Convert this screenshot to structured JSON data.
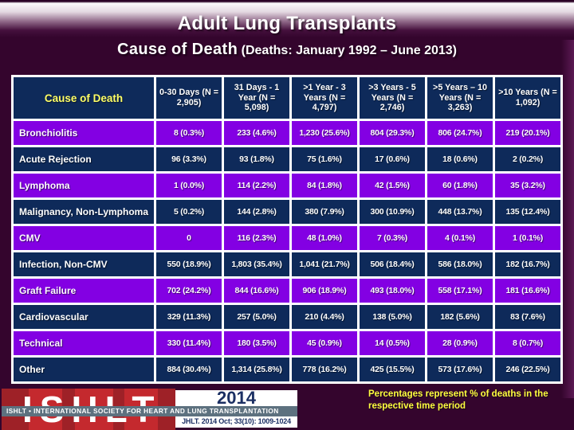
{
  "slide": {
    "title": "Adult Lung Transplants",
    "subtitle": "Cause of Death",
    "subtitle_detail": "(Deaths: January 1992 – June 2013)",
    "footnote": "Percentages represent % of deaths in the respective time period"
  },
  "table": {
    "corner_header": "Cause of Death",
    "columns": [
      {
        "label": "0-30 Days",
        "n": "(N = 2,905)"
      },
      {
        "label": "31 Days - 1 Year",
        "n": "(N = 5,098)"
      },
      {
        "label": ">1 Year - 3 Years",
        "n": "(N = 4,797)"
      },
      {
        "label": ">3 Years - 5 Years",
        "n": "(N = 2,746)"
      },
      {
        "label": ">5 Years – 10 Years",
        "n": "(N = 3,263)"
      },
      {
        "label": ">10 Years",
        "n": "(N = 1,092)"
      }
    ],
    "rows": [
      {
        "label": "Bronchiolitis",
        "values": [
          "8 (0.3%)",
          "233 (4.6%)",
          "1,230 (25.6%)",
          "804 (29.3%)",
          "806 (24.7%)",
          "219 (20.1%)"
        ]
      },
      {
        "label": "Acute Rejection",
        "values": [
          "96 (3.3%)",
          "93 (1.8%)",
          "75 (1.6%)",
          "17 (0.6%)",
          "18 (0.6%)",
          "2 (0.2%)"
        ]
      },
      {
        "label": "Lymphoma",
        "values": [
          "1 (0.0%)",
          "114 (2.2%)",
          "84 (1.8%)",
          "42 (1.5%)",
          "60 (1.8%)",
          "35 (3.2%)"
        ]
      },
      {
        "label": "Malignancy, Non-Lymphoma",
        "values": [
          "5 (0.2%)",
          "144 (2.8%)",
          "380 (7.9%)",
          "300 (10.9%)",
          "448 (13.7%)",
          "135 (12.4%)"
        ]
      },
      {
        "label": "CMV",
        "values": [
          "0",
          "116 (2.3%)",
          "48 (1.0%)",
          "7 (0.3%)",
          "4 (0.1%)",
          "1 (0.1%)"
        ]
      },
      {
        "label": "Infection, Non-CMV",
        "values": [
          "550 (18.9%)",
          "1,803 (35.4%)",
          "1,041 (21.7%)",
          "506 (18.4%)",
          "586 (18.0%)",
          "182 (16.7%)"
        ]
      },
      {
        "label": "Graft Failure",
        "values": [
          "702 (24.2%)",
          "844 (16.6%)",
          "906 (18.9%)",
          "493 (18.0%)",
          "558 (17.1%)",
          "181 (16.6%)"
        ]
      },
      {
        "label": "Cardiovascular",
        "values": [
          "329 (11.3%)",
          "257 (5.0%)",
          "210 (4.4%)",
          "138 (5.0%)",
          "182 (5.6%)",
          "83 (7.6%)"
        ]
      },
      {
        "label": "Technical",
        "values": [
          "330 (11.4%)",
          "180 (3.5%)",
          "45 (0.9%)",
          "14 (0.5%)",
          "28 (0.9%)",
          "8 (0.7%)"
        ]
      },
      {
        "label": "Other",
        "values": [
          "884 (30.4%)",
          "1,314 (25.8%)",
          "778 (16.2%)",
          "425 (15.5%)",
          "573 (17.6%)",
          "246 (22.5%)"
        ]
      }
    ]
  },
  "footer": {
    "logo_text": "ISHLT",
    "logo_banner": "ISHLT • INTERNATIONAL SOCIETY FOR HEART AND LUNG TRANSPLANTATION",
    "year": "2014",
    "citation": "JHLT. 2014 Oct; 33(10): 1009-1024"
  },
  "colors": {
    "background": "#34052d",
    "row_purple": "#8300e3",
    "row_navy": "#0e2a5a",
    "header_yellow": "#ffff66",
    "note_yellow": "#ffff3f",
    "logo_red": "#c1272d",
    "logo_strip_grey": "#5d717f",
    "logo_navy": "#1b2f63"
  }
}
